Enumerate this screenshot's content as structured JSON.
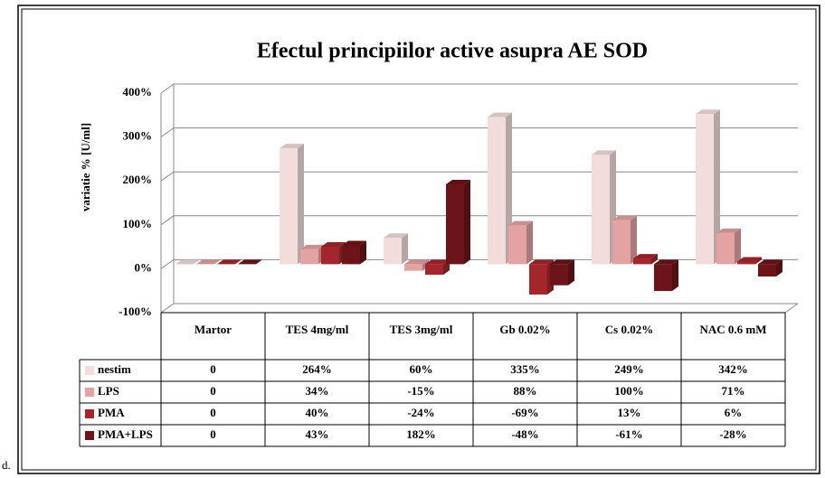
{
  "caption_fragment": "d.",
  "chart_data": {
    "type": "bar3d",
    "title": "Efectul principiilor active asupra AE SOD",
    "y_label": "variatie % [U/ml]",
    "categories": [
      "Martor",
      "TES 4mg/ml",
      "TES 3mg/ml",
      "Gb 0.02%",
      "Cs 0.02%",
      "NAC 0.6 mM"
    ],
    "series": [
      {
        "name": "nestim",
        "color": "#f2dcdc",
        "values": [
          0,
          264,
          60,
          335,
          249,
          342
        ],
        "value_labels": [
          "0",
          "264%",
          "60%",
          "335%",
          "249%",
          "342%"
        ]
      },
      {
        "name": "LPS",
        "color": "#e3a3a3",
        "values": [
          0,
          34,
          -15,
          88,
          100,
          71
        ],
        "value_labels": [
          "0",
          "34%",
          "-15%",
          "88%",
          "100%",
          "71%"
        ]
      },
      {
        "name": "PMA",
        "color": "#a3262c",
        "values": [
          0,
          40,
          -24,
          -69,
          13,
          6
        ],
        "value_labels": [
          "0",
          "40%",
          "-24%",
          "-69%",
          "13%",
          "6%"
        ]
      },
      {
        "name": "PMA+LPS",
        "color": "#6b1419",
        "values": [
          0,
          43,
          182,
          -48,
          -61,
          -28
        ],
        "value_labels": [
          "0",
          "43%",
          "182%",
          "-48%",
          "-61%",
          "-28%"
        ]
      }
    ],
    "ylim": [
      -100,
      400
    ],
    "yticks": [
      {
        "value": -100,
        "label": "-100%"
      },
      {
        "value": 0,
        "label": "0%"
      },
      {
        "value": 100,
        "label": "100%"
      },
      {
        "value": 200,
        "label": "200%"
      },
      {
        "value": 300,
        "label": "300%"
      },
      {
        "value": 400,
        "label": "400%"
      }
    ],
    "grid": true
  }
}
